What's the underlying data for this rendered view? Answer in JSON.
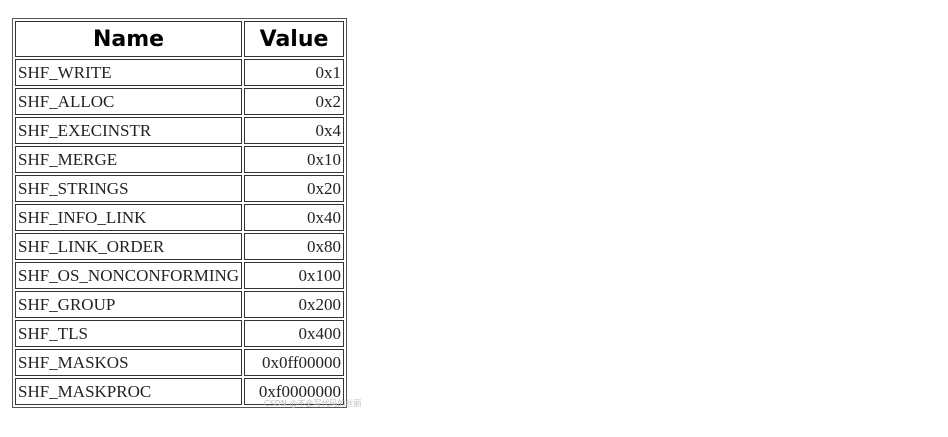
{
  "table": {
    "headers": {
      "name": "Name",
      "value": "Value"
    },
    "rows": [
      {
        "name": "SHF_WRITE",
        "value": "0x1"
      },
      {
        "name": "SHF_ALLOC",
        "value": "0x2"
      },
      {
        "name": "SHF_EXECINSTR",
        "value": "0x4"
      },
      {
        "name": "SHF_MERGE",
        "value": "0x10"
      },
      {
        "name": "SHF_STRINGS",
        "value": "0x20"
      },
      {
        "name": "SHF_INFO_LINK",
        "value": "0x40"
      },
      {
        "name": "SHF_LINK_ORDER",
        "value": "0x80"
      },
      {
        "name": "SHF_OS_NONCONFORMING",
        "value": "0x100"
      },
      {
        "name": "SHF_GROUP",
        "value": "0x200"
      },
      {
        "name": "SHF_TLS",
        "value": "0x400"
      },
      {
        "name": "SHF_MASKOS",
        "value": "0x0ff00000"
      },
      {
        "name": "SHF_MASKPROC",
        "value": "0xf0000000"
      }
    ]
  },
  "watermark": {
    "text": "CSDN @不会写代码的丝丽"
  }
}
